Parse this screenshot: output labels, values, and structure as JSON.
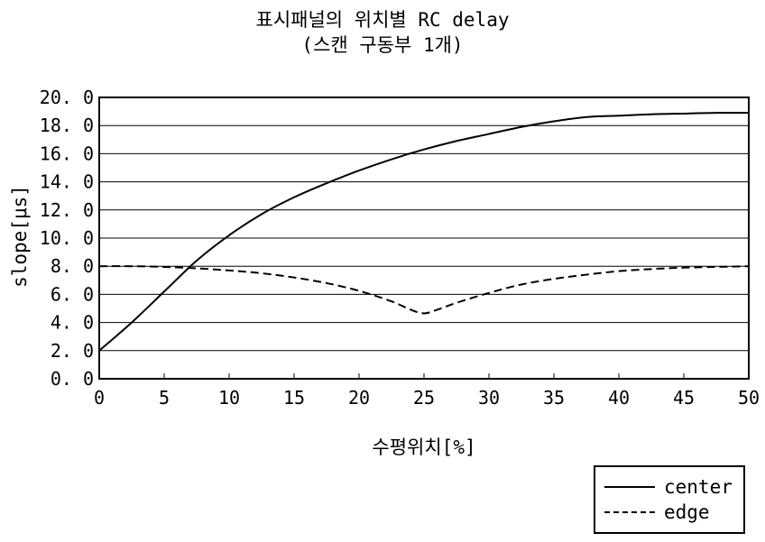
{
  "chart_data": {
    "type": "line",
    "title": "표시패널의 위치별 RC delay",
    "subtitle": "(스캔 구동부 1개)",
    "xlabel": "수평위치[%]",
    "ylabel": "slope[μs]",
    "xlim": [
      0,
      50
    ],
    "ylim": [
      0,
      20
    ],
    "x_ticks": [
      "0",
      "5",
      "10",
      "15",
      "20",
      "25",
      "30",
      "35",
      "40",
      "45",
      "50"
    ],
    "y_ticks": [
      "0. 0",
      "2. 0",
      "4. 0",
      "6. 0",
      "8. 0",
      "10. 0",
      "12. 0",
      "14. 0",
      "16. 0",
      "18. 0",
      "20. 0"
    ],
    "grid": "horizontal",
    "legend_position": "bottom-right",
    "series": [
      {
        "name": "center",
        "style": "solid",
        "color": "#000000",
        "x": [
          0,
          2.5,
          5,
          7.5,
          10,
          12.5,
          15,
          17.5,
          20,
          22.5,
          25,
          27.5,
          30,
          32.5,
          35,
          37.5,
          40,
          42.5,
          45,
          47.5,
          50
        ],
        "y": [
          2.0,
          4.0,
          6.2,
          8.4,
          10.2,
          11.7,
          12.9,
          13.9,
          14.8,
          15.6,
          16.3,
          16.9,
          17.4,
          17.9,
          18.3,
          18.6,
          18.7,
          18.8,
          18.85,
          18.9,
          18.9
        ]
      },
      {
        "name": "edge",
        "style": "dashed",
        "color": "#000000",
        "x": [
          0,
          2.5,
          5,
          7.5,
          10,
          12.5,
          15,
          17.5,
          20,
          22.5,
          24,
          25,
          26,
          27.5,
          30,
          32.5,
          35,
          37.5,
          40,
          42.5,
          45,
          47.5,
          50
        ],
        "y": [
          8.0,
          8.0,
          7.95,
          7.85,
          7.7,
          7.5,
          7.2,
          6.8,
          6.25,
          5.5,
          4.9,
          4.65,
          4.9,
          5.4,
          6.1,
          6.7,
          7.1,
          7.4,
          7.65,
          7.8,
          7.9,
          7.95,
          8.0
        ]
      }
    ]
  }
}
